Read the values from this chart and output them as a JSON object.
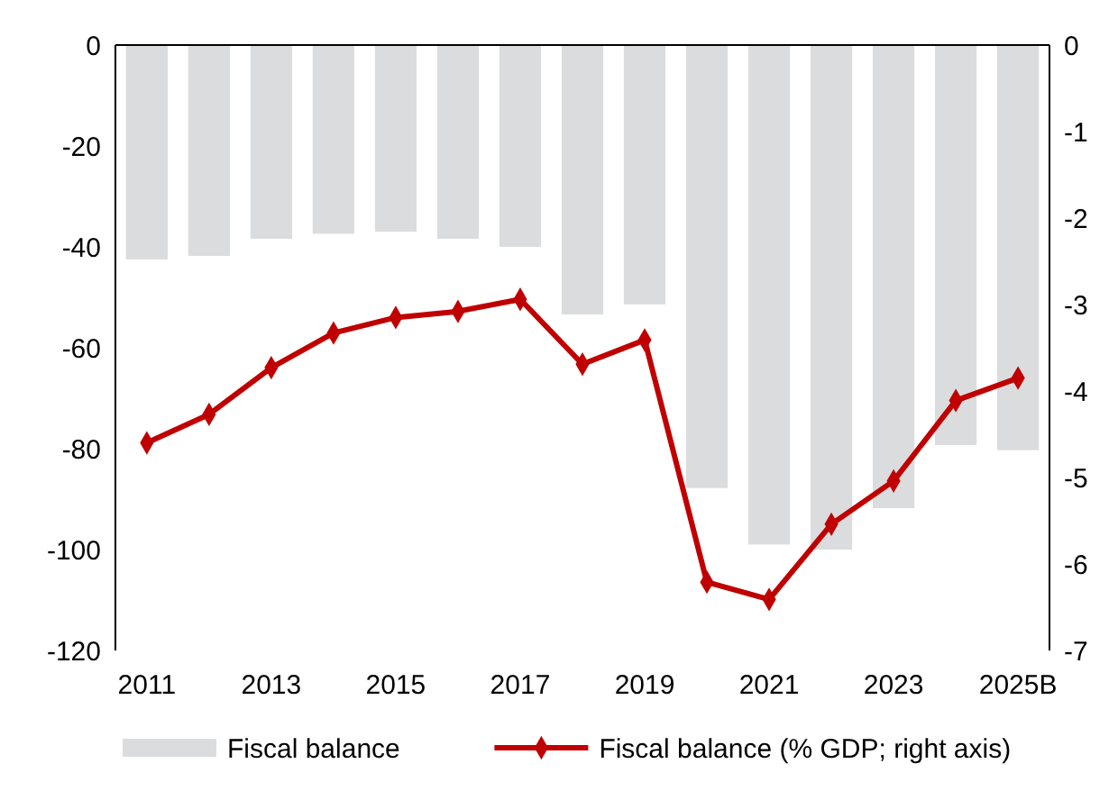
{
  "chart_data": {
    "type": "bar",
    "categories": [
      "2011",
      null,
      "2013",
      null,
      "2015",
      null,
      "2017",
      null,
      "2019",
      null,
      "2021",
      null,
      "2023",
      null,
      "2025B"
    ],
    "series": [
      {
        "name": "Fiscal balance",
        "color": "#dbdcde",
        "values": [
          -42.5,
          -41.8,
          -38.4,
          -37.4,
          -37,
          -38.4,
          -40,
          -53.4,
          -51.4,
          -87.8,
          -99,
          -100,
          -91.8,
          -79.3,
          -80.3
        ]
      },
      {
        "name": "Fiscal balance (% GDP; right axis)",
        "type": "line",
        "axis": "y2",
        "color": "#c00000",
        "values": [
          -4.6,
          -4.27,
          -3.73,
          -3.33,
          -3.15,
          -3.08,
          -2.94,
          -3.69,
          -3.41,
          -6.21,
          -6.41,
          -5.54,
          -5.04,
          -4.11,
          -3.85
        ]
      }
    ],
    "ylim": [
      -120,
      0
    ],
    "yticks": [
      0,
      -20,
      -40,
      -60,
      -80,
      -100,
      -120
    ],
    "y2lim": [
      -7,
      0
    ],
    "y2ticks": [
      0,
      -1,
      -2,
      -3,
      -4,
      -5,
      -6,
      -7
    ],
    "marker": "diamond",
    "legend": "bottom",
    "grid": false
  }
}
